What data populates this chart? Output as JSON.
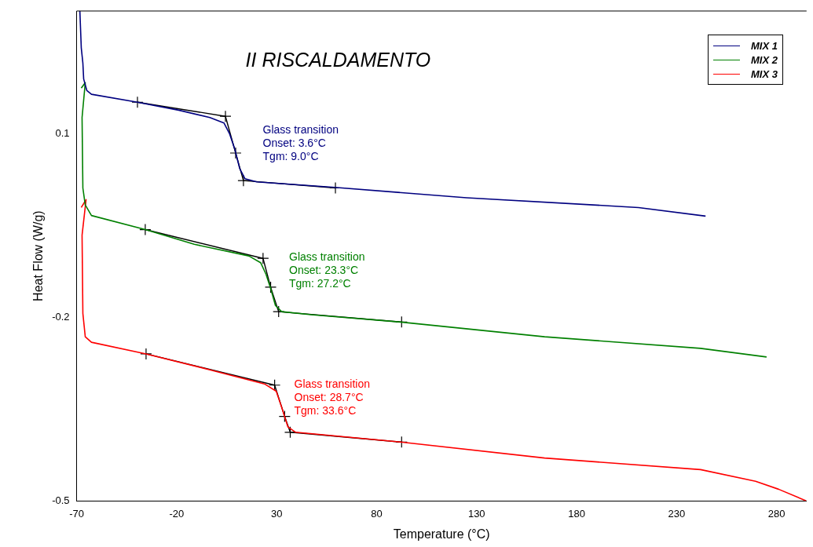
{
  "chart_data": {
    "type": "line",
    "title": "II RISCALDAMENTO",
    "xlabel": "Temperature (°C)",
    "ylabel": "Heat Flow (W/g)",
    "xlim": [
      -70,
      295
    ],
    "xticks": [
      -70,
      -20,
      30,
      80,
      130,
      180,
      230,
      280
    ],
    "ylim": [
      -0.5,
      0.3
    ],
    "yticks": [
      -0.5,
      -0.2,
      0.1
    ],
    "grid": false,
    "legend": "top right",
    "marker": "none",
    "line_style": "solid",
    "series": [
      {
        "name": "MIX 1",
        "color": "#000080",
        "x": [
          -68.4,
          -67.7,
          -66.9,
          -66.5,
          -64.9,
          -62.6,
          -39.6,
          -19,
          -3.4,
          3.7,
          6.4,
          9.1,
          11.5,
          14.2,
          20,
          59,
          125,
          211,
          244.5
        ],
        "values": [
          0.3,
          0.24,
          0.215,
          0.189,
          0.17,
          0.164,
          0.151,
          0.138,
          0.126,
          0.117,
          0.1,
          0.074,
          0.043,
          0.026,
          0.021,
          0.012,
          -0.005,
          -0.021,
          -0.035
        ]
      },
      {
        "name": "MIX 2",
        "color": "#008000",
        "x": [
          -67.7,
          -65.7,
          -67.3,
          -66.9,
          -65.7,
          -65.3,
          -62.6,
          -35.7,
          -11.2,
          16.1,
          22,
          24.7,
          27,
          29.4,
          32.5,
          47.3,
          92,
          164,
          242,
          275
        ],
        "values": [
          0.174,
          0.183,
          0.126,
          0.011,
          -0.017,
          -0.019,
          -0.034,
          -0.057,
          -0.081,
          -0.1,
          -0.111,
          -0.13,
          -0.153,
          -0.181,
          -0.191,
          -0.196,
          -0.208,
          -0.232,
          -0.251,
          -0.265
        ]
      },
      {
        "name": "MIX 3",
        "color": "#ff0000",
        "x": [
          -67.7,
          -65.3,
          -67.3,
          -66.9,
          -65.7,
          -62.6,
          -35.3,
          -3.4,
          23.9,
          29.8,
          32.5,
          35.6,
          39.5,
          92,
          164,
          242,
          269.5,
          281,
          294.8
        ],
        "values": [
          -0.021,
          -0.008,
          -0.066,
          -0.194,
          -0.232,
          -0.241,
          -0.26,
          -0.286,
          -0.309,
          -0.321,
          -0.347,
          -0.379,
          -0.388,
          -0.404,
          -0.43,
          -0.449,
          -0.468,
          -0.481,
          -0.5
        ]
      },
      {
        "color": "#000000",
        "marker": "cross",
        "x": [
          -39.6,
          4.4,
          9.5,
          13.4,
          59.4
        ],
        "values": [
          0.151,
          0.128,
          0.068,
          0.023,
          0.011
        ]
      },
      {
        "color": "#000000",
        "marker": "cross",
        "x": [
          -35.7,
          23.2,
          27,
          31,
          92.5
        ],
        "values": [
          -0.057,
          -0.104,
          -0.151,
          -0.191,
          -0.208
        ]
      },
      {
        "color": "#000000",
        "marker": "cross",
        "x": [
          -35.3,
          29,
          34,
          36.8,
          92.5
        ],
        "values": [
          -0.26,
          -0.311,
          -0.362,
          -0.388,
          -0.404
        ]
      }
    ],
    "annotations": [
      "Glass transition\nOnset: 3.6°C\nTgm: 9.0°C",
      "Glass transition\nOnset: 23.3°C\nTgm: 27.2°C",
      "Glass transition\nOnset: 28.7°C\nTgm: 33.6°C"
    ]
  }
}
